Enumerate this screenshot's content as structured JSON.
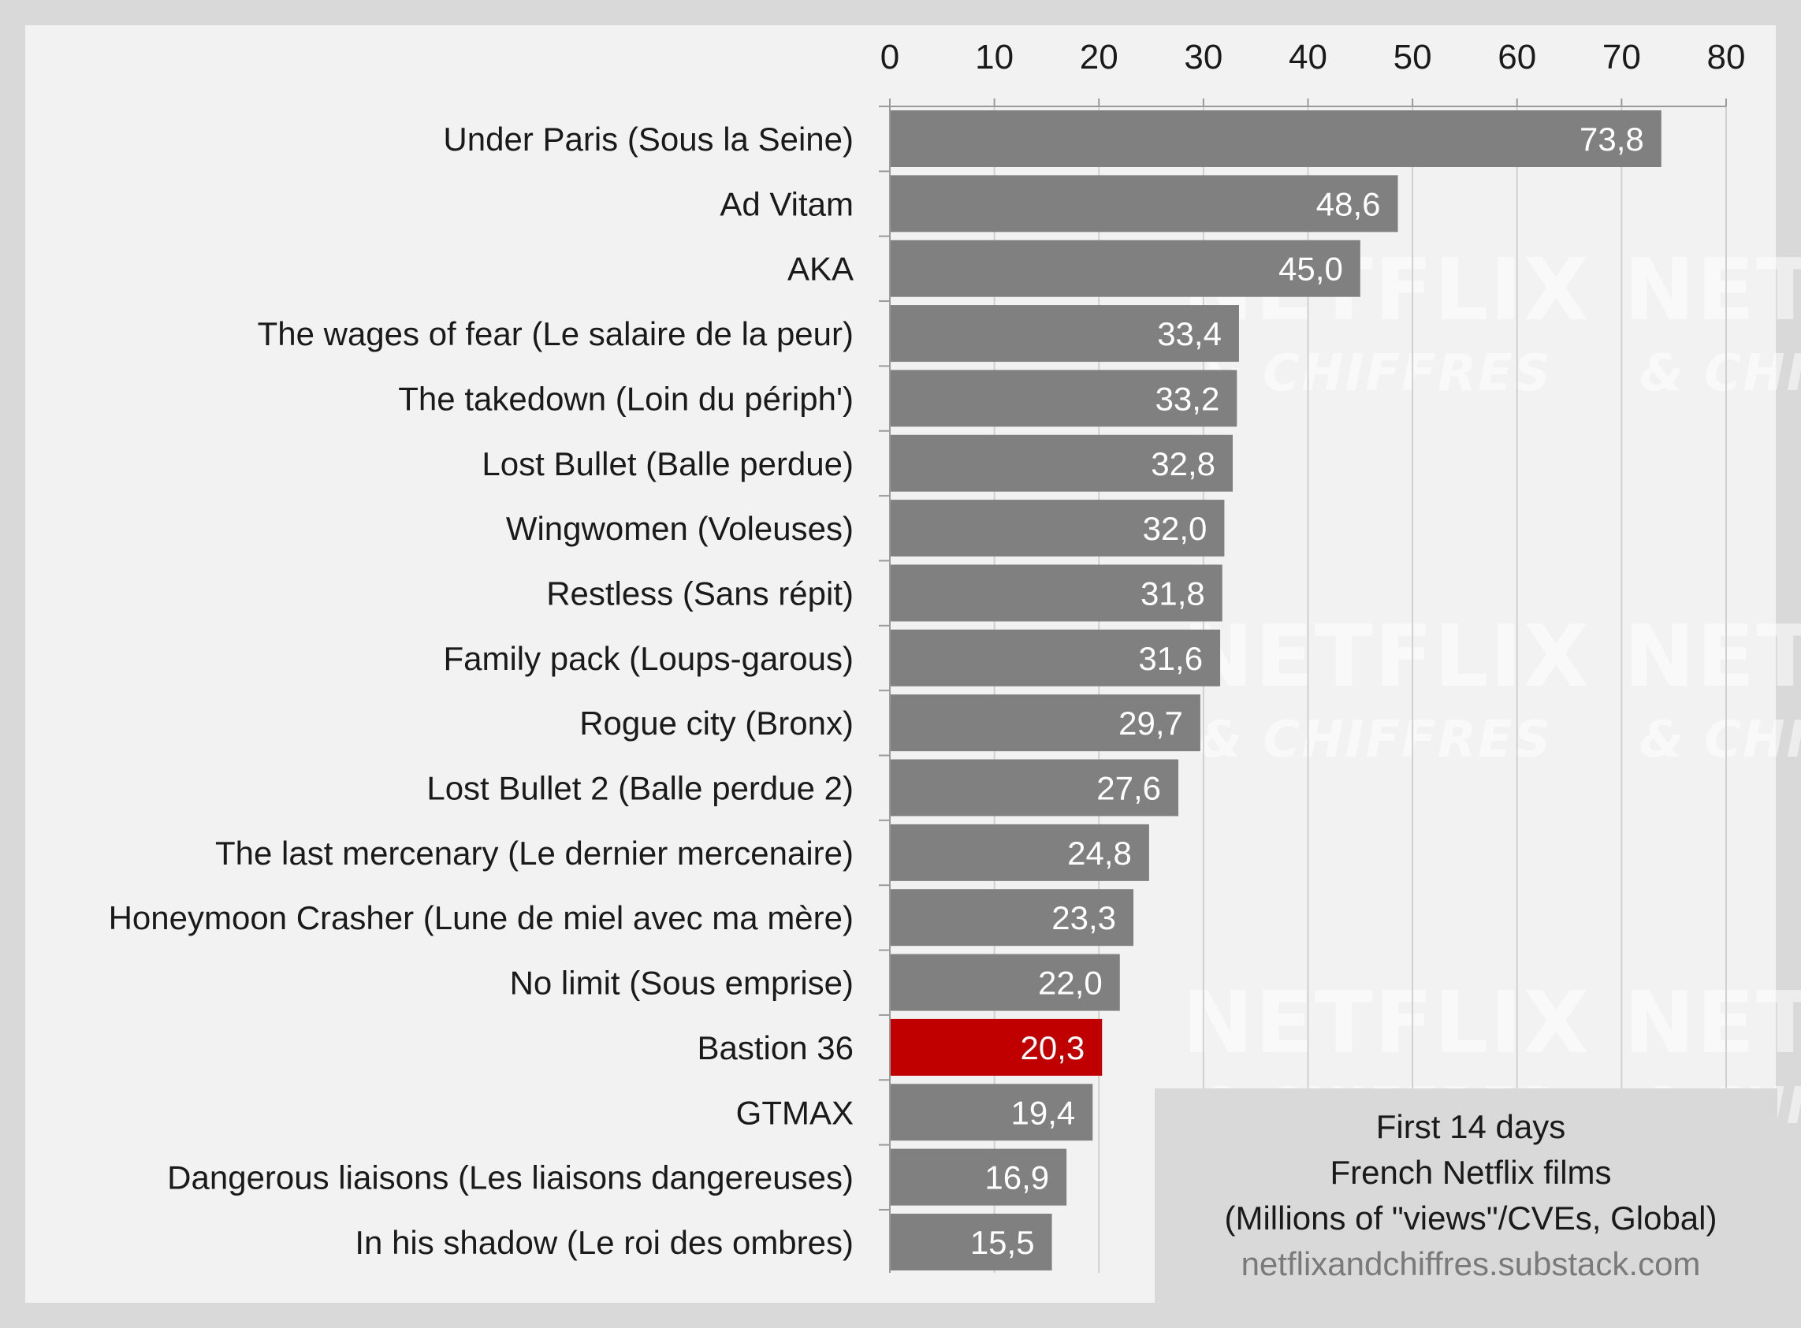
{
  "chart_data": {
    "type": "bar",
    "orientation": "horizontal",
    "categories": [
      "Under Paris (Sous la Seine)",
      "Ad Vitam",
      "AKA",
      "The wages of fear (Le salaire de la peur)",
      "The takedown (Loin du périph')",
      "Lost Bullet (Balle perdue)",
      "Wingwomen (Voleuses)",
      "Restless (Sans répit)",
      "Family pack (Loups-garous)",
      "Rogue city (Bronx)",
      "Lost Bullet 2 (Balle perdue 2)",
      "The last mercenary (Le dernier mercenaire)",
      "Honeymoon Crasher (Lune de miel avec ma mère)",
      "No limit (Sous emprise)",
      "Bastion 36",
      "GTMAX",
      "Dangerous liaisons (Les liaisons dangereuses)",
      "In his shadow (Le roi des ombres)"
    ],
    "values": [
      73.8,
      48.6,
      45.0,
      33.4,
      33.2,
      32.8,
      32.0,
      31.8,
      31.6,
      29.7,
      27.6,
      24.8,
      23.3,
      22.0,
      20.3,
      19.4,
      16.9,
      15.5
    ],
    "value_labels": [
      "73,8",
      "48,6",
      "45,0",
      "33,4",
      "33,2",
      "32,8",
      "32,0",
      "31,8",
      "31,6",
      "29,7",
      "27,6",
      "24,8",
      "23,3",
      "22,0",
      "20,3",
      "19,4",
      "16,9",
      "15,5"
    ],
    "highlight_index": 14,
    "xlim": [
      0,
      80
    ],
    "xticks": [
      0,
      10,
      20,
      30,
      40,
      50,
      60,
      70,
      80
    ],
    "x_axis_position": "top",
    "grid": true,
    "colors": {
      "bar": "#808080",
      "highlight": "#c00000",
      "plot_background": "#f2f2f2",
      "outer_background": "#d9d9d9",
      "gridline": "#d0d0d0"
    },
    "annotation": {
      "lines": [
        "First 14 days",
        "French Netflix films",
        "(Millions of \"views\"/CVEs, Global)"
      ],
      "url": "netflixandchiffres.substack.com",
      "placement": "bottom-right"
    },
    "watermark": {
      "word": "NETFLIX",
      "subword": "& CHIFFRES"
    }
  }
}
